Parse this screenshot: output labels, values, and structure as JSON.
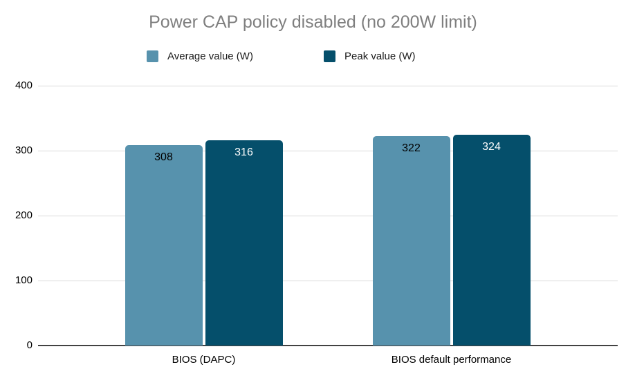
{
  "title": "Power CAP policy disabled (no 200W limit)",
  "legend": [
    {
      "label": "Average value (W)",
      "color": "#5792ad"
    },
    {
      "label": "Peak value (W)",
      "color": "#054f6b"
    }
  ],
  "chart_data": {
    "type": "bar",
    "title": "Power CAP policy disabled (no 200W limit)",
    "categories": [
      "BIOS (DAPC)",
      "BIOS default performance"
    ],
    "series": [
      {
        "name": "Average value (W)",
        "color": "#5792ad",
        "label_color": "#000000",
        "values": [
          308,
          322
        ]
      },
      {
        "name": "Peak value (W)",
        "color": "#054f6b",
        "label_color": "#ffffff",
        "values": [
          316,
          324
        ]
      }
    ],
    "xlabel": "",
    "ylabel": "",
    "ylim": [
      0,
      400
    ],
    "yticks": [
      0,
      100,
      200,
      300,
      400
    ],
    "grid": true,
    "legend_position": "top",
    "data_labels": true
  },
  "colors": {
    "title_text": "#7f7f7f",
    "gridline": "#d9d9d9",
    "axis_baseline": "#424242",
    "tick_text": "#000000",
    "background": "#ffffff"
  }
}
